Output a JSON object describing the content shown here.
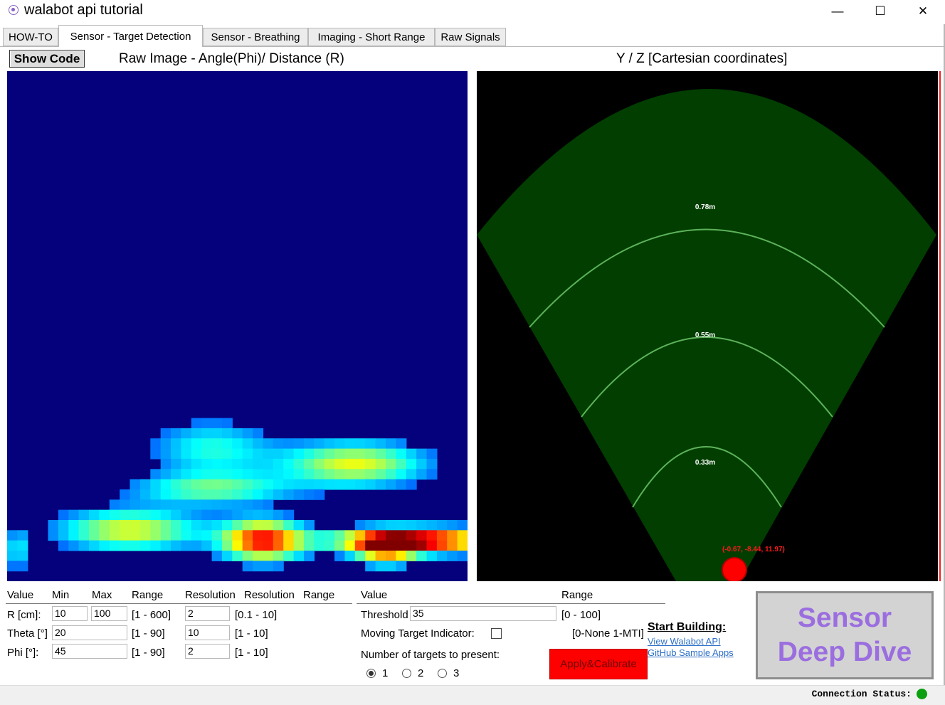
{
  "window": {
    "title": "walabot api tutorial",
    "controls": {
      "minimize": "—",
      "maximize": "☐",
      "close": "✕"
    }
  },
  "tabs": [
    {
      "label": "HOW-TO",
      "active": false
    },
    {
      "label": "Sensor - Target Detection",
      "active": true
    },
    {
      "label": "Sensor - Breathing",
      "active": false
    },
    {
      "label": "Imaging - Short Range",
      "active": false
    },
    {
      "label": "Raw Signals",
      "active": false
    }
  ],
  "toolbar": {
    "show_code_label": "Show Code"
  },
  "raw_image": {
    "title": "Raw Image - Angle(Phi)/ Distance (R)",
    "background": "#05007c"
  },
  "cartesian": {
    "title": "Y / Z [Cartesian coordinates]",
    "arc_labels": [
      "0.78m",
      "0.55m",
      "0.33m"
    ],
    "target_label": "(-0.67, -8.44, 11.97)",
    "sector_color": "#013e00",
    "arc_color": "#5db25a",
    "target_color": "#ff0000"
  },
  "arena": {
    "headers": [
      "Value",
      "Min",
      "Max",
      "Range",
      "Resolution",
      "Resolution",
      "Range"
    ],
    "rows": [
      {
        "label": "R [cm]:",
        "min": "10",
        "max": "100",
        "range": "[1 - 600]",
        "res": "2",
        "res_range": "[0.1 - 10]"
      },
      {
        "label": "Theta [°]",
        "value": "20",
        "range": "[1 - 90]",
        "res": "10",
        "res_range": "[1 - 10]"
      },
      {
        "label": "Phi [°]:",
        "value": "45",
        "range": "[1 - 90]",
        "res": "2",
        "res_range": "[1 - 10]"
      }
    ]
  },
  "settings": {
    "header_value": "Value",
    "header_range": "Range",
    "threshold_label": "Threshold",
    "threshold_value": "35",
    "threshold_range": "[0 - 100]",
    "mti_label": "Moving Target Indicator:",
    "mti_range": "[0-None 1-MTI]",
    "targets_label": "Number of targets to present:",
    "target_options": [
      "1",
      "2",
      "3"
    ],
    "selected_target": "1",
    "apply_label": "Apply&Calibrate"
  },
  "start_building": {
    "title": "Start Building:",
    "links": [
      "View Walabot API",
      "GitHub Sample Apps"
    ]
  },
  "deep_dive": {
    "line1": "Sensor",
    "line2": "Deep Dive"
  },
  "status": {
    "label": "Connection Status:",
    "color": "#0aa00f"
  }
}
